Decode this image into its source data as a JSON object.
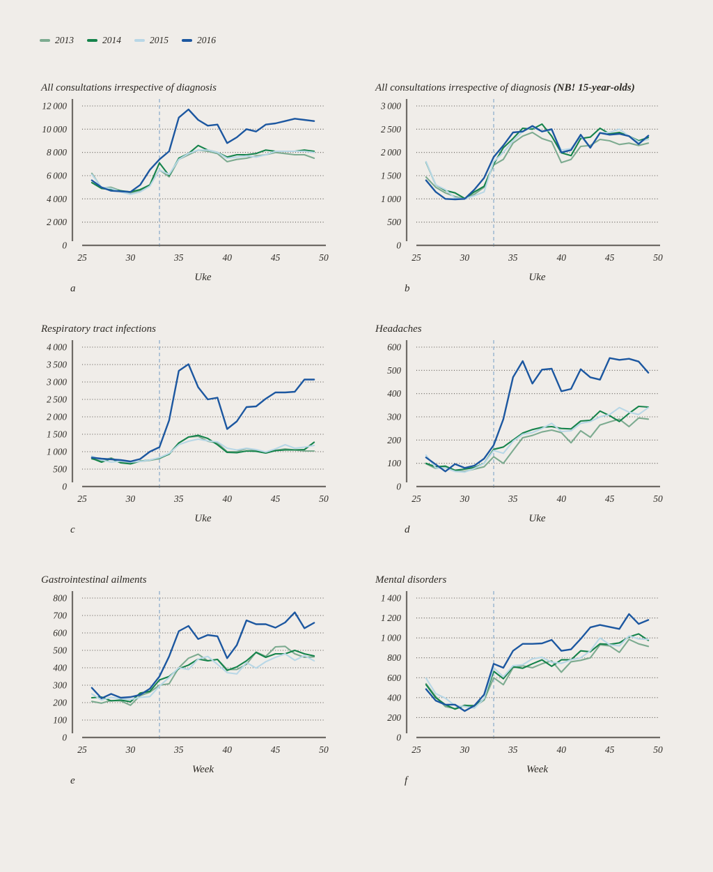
{
  "legend": {
    "items": [
      {
        "label": "2013",
        "color": "#7dab90"
      },
      {
        "label": "2014",
        "color": "#15834b"
      },
      {
        "label": "2015",
        "color": "#b8d7e6"
      },
      {
        "label": "2016",
        "color": "#1c57a0"
      }
    ]
  },
  "style_colors": {
    "background": "#f0ede9",
    "grid_dots": "#57534d",
    "axis": "#6f6b66",
    "dashed_vline": "#a9c0d4",
    "text": "#2d2a25"
  },
  "weeks": [
    26,
    27,
    28,
    29,
    30,
    31,
    32,
    33,
    34,
    35,
    36,
    37,
    38,
    39,
    40,
    41,
    42,
    43,
    44,
    45,
    46,
    47,
    48,
    49
  ],
  "chart_data": [
    {
      "type": "line",
      "title": "All consultations irrespective of diagnosis",
      "title_bold": "",
      "panel_letter": "a",
      "xlabel": "Uke",
      "xlim": [
        25,
        50
      ],
      "xticks": [
        25,
        30,
        35,
        40,
        45,
        50
      ],
      "ylim": [
        0,
        12000
      ],
      "ystep": 2000,
      "vline_week": 33,
      "grid": "dotted",
      "legend_position": "top-left-of-figure",
      "series": [
        {
          "name": "2013",
          "values": [
            6200,
            4950,
            5000,
            4700,
            4500,
            4700,
            5200,
            6500,
            5900,
            7400,
            7800,
            8200,
            8100,
            7900,
            7200,
            7400,
            7500,
            7700,
            7800,
            8000,
            7900,
            7800,
            7800,
            7500
          ]
        },
        {
          "name": "2014",
          "values": [
            5400,
            4900,
            4800,
            4700,
            4600,
            4800,
            5200,
            7100,
            6000,
            7500,
            7900,
            8600,
            8200,
            8000,
            7600,
            7800,
            7800,
            7900,
            8200,
            8100,
            8100,
            8100,
            8200,
            8100
          ]
        },
        {
          "name": "2015",
          "values": [
            6100,
            5000,
            4900,
            4600,
            4400,
            4600,
            5100,
            6500,
            6100,
            7400,
            7900,
            8200,
            8200,
            8000,
            7500,
            7600,
            7700,
            7600,
            7800,
            8100,
            8100,
            8100,
            8100,
            8000
          ]
        },
        {
          "name": "2016",
          "values": [
            5600,
            5000,
            4700,
            4650,
            4600,
            5200,
            6500,
            7400,
            8100,
            11000,
            11700,
            10800,
            10300,
            10400,
            8800,
            9300,
            10000,
            9800,
            10400,
            10500,
            10700,
            10900,
            10800,
            10700
          ]
        }
      ]
    },
    {
      "type": "line",
      "title": "All consultations irrespective of diagnosis ",
      "title_bold": "(NB! 15-year-olds)",
      "panel_letter": "b",
      "xlabel": "Uke",
      "xlim": [
        25,
        50
      ],
      "xticks": [
        25,
        30,
        35,
        40,
        45,
        50
      ],
      "ylim": [
        0,
        3000
      ],
      "ystep": 500,
      "vline_week": 33,
      "grid": "dotted",
      "series": [
        {
          "name": "2013",
          "values": [
            1470,
            1250,
            1130,
            1050,
            1000,
            1100,
            1250,
            1730,
            1850,
            2200,
            2350,
            2430,
            2300,
            2230,
            1780,
            1850,
            2130,
            2150,
            2280,
            2250,
            2170,
            2200,
            2150,
            2200
          ]
        },
        {
          "name": "2014",
          "values": [
            1790,
            1300,
            1180,
            1130,
            1010,
            1150,
            1270,
            1750,
            2100,
            2300,
            2520,
            2500,
            2610,
            2350,
            1990,
            1930,
            2300,
            2330,
            2520,
            2400,
            2430,
            2350,
            2250,
            2320
          ]
        },
        {
          "name": "2015",
          "values": [
            1800,
            1300,
            1200,
            1020,
            1000,
            1070,
            1150,
            1800,
            2000,
            2250,
            2450,
            2550,
            2450,
            2480,
            2050,
            2080,
            2350,
            2100,
            2420,
            2430,
            2500,
            2350,
            2230,
            2280
          ]
        },
        {
          "name": "2016",
          "values": [
            1400,
            1150,
            1000,
            990,
            1000,
            1200,
            1450,
            1900,
            2150,
            2430,
            2450,
            2570,
            2450,
            2500,
            2000,
            2050,
            2380,
            2100,
            2420,
            2380,
            2400,
            2350,
            2180,
            2360
          ]
        }
      ]
    },
    {
      "type": "line",
      "title": "Respiratory tract infections",
      "title_bold": "",
      "panel_letter": "c",
      "xlabel": "Uke",
      "xlim": [
        25,
        50
      ],
      "xticks": [
        25,
        30,
        35,
        40,
        45,
        50
      ],
      "ylim": [
        0,
        4000
      ],
      "ystep": 500,
      "vline_week": 33,
      "grid": "dotted",
      "series": [
        {
          "name": "2013",
          "values": [
            790,
            740,
            820,
            700,
            690,
            720,
            750,
            800,
            940,
            1250,
            1420,
            1440,
            1300,
            1250,
            1000,
            1000,
            1090,
            1030,
            980,
            1040,
            1080,
            1050,
            1020,
            1020
          ]
        },
        {
          "name": "2014",
          "values": [
            810,
            700,
            800,
            680,
            650,
            730,
            760,
            820,
            930,
            1250,
            1420,
            1470,
            1380,
            1200,
            980,
            970,
            1020,
            1010,
            960,
            1030,
            1050,
            1050,
            1060,
            1270
          ]
        },
        {
          "name": "2015",
          "values": [
            870,
            760,
            700,
            730,
            700,
            720,
            760,
            830,
            950,
            1200,
            1300,
            1360,
            1310,
            1280,
            1100,
            1050,
            1100,
            1060,
            990,
            1080,
            1200,
            1100,
            1130,
            1180
          ]
        },
        {
          "name": "2016",
          "values": [
            830,
            800,
            780,
            760,
            720,
            790,
            1000,
            1130,
            1900,
            3320,
            3510,
            2850,
            2500,
            2550,
            1650,
            1870,
            2280,
            2300,
            2520,
            2700,
            2700,
            2720,
            3070,
            3070
          ]
        }
      ]
    },
    {
      "type": "line",
      "title": "Headaches",
      "title_bold": "",
      "panel_letter": "d",
      "xlabel": "Uke",
      "xlim": [
        25,
        50
      ],
      "xticks": [
        25,
        30,
        35,
        40,
        45,
        50
      ],
      "ylim": [
        0,
        600
      ],
      "ystep": 100,
      "vline_week": 33,
      "grid": "dotted",
      "series": [
        {
          "name": "2013",
          "values": [
            98,
            78,
            85,
            68,
            65,
            75,
            85,
            128,
            100,
            155,
            210,
            220,
            235,
            243,
            232,
            188,
            240,
            212,
            265,
            278,
            290,
            258,
            295,
            290
          ]
        },
        {
          "name": "2014",
          "values": [
            100,
            85,
            88,
            70,
            75,
            82,
            100,
            160,
            170,
            200,
            230,
            245,
            255,
            258,
            250,
            248,
            282,
            285,
            325,
            305,
            280,
            315,
            345,
            342
          ]
        },
        {
          "name": "2015",
          "values": [
            135,
            80,
            80,
            65,
            62,
            78,
            100,
            155,
            143,
            195,
            225,
            232,
            250,
            272,
            237,
            240,
            272,
            280,
            300,
            310,
            340,
            320,
            310,
            340
          ]
        },
        {
          "name": "2016",
          "values": [
            125,
            95,
            65,
            97,
            80,
            90,
            120,
            178,
            290,
            470,
            540,
            443,
            503,
            507,
            410,
            420,
            505,
            470,
            460,
            553,
            545,
            550,
            538,
            490
          ]
        }
      ]
    },
    {
      "type": "line",
      "title": "Gastrointestinal ailments",
      "title_bold": "",
      "panel_letter": "e",
      "xlabel": "Week",
      "xlim": [
        25,
        50
      ],
      "xticks": [
        25,
        30,
        35,
        40,
        45,
        50
      ],
      "ylim": [
        0,
        800
      ],
      "ystep": 100,
      "vline_week": 33,
      "grid": "dotted",
      "series": [
        {
          "name": "2013",
          "values": [
            207,
            197,
            212,
            210,
            185,
            240,
            260,
            300,
            308,
            400,
            455,
            478,
            440,
            448,
            390,
            390,
            420,
            490,
            465,
            520,
            523,
            480,
            460,
            463
          ]
        },
        {
          "name": "2014",
          "values": [
            228,
            232,
            210,
            215,
            205,
            255,
            265,
            330,
            350,
            395,
            415,
            450,
            440,
            448,
            385,
            405,
            440,
            488,
            460,
            480,
            480,
            500,
            480,
            468
          ]
        },
        {
          "name": "2015",
          "values": [
            250,
            215,
            230,
            222,
            218,
            230,
            235,
            295,
            345,
            400,
            390,
            450,
            465,
            420,
            372,
            365,
            430,
            398,
            435,
            460,
            480,
            443,
            470,
            440
          ]
        },
        {
          "name": "2016",
          "values": [
            285,
            225,
            250,
            228,
            232,
            245,
            280,
            350,
            465,
            610,
            640,
            565,
            588,
            581,
            455,
            530,
            672,
            650,
            650,
            630,
            660,
            718,
            627,
            658
          ]
        }
      ]
    },
    {
      "type": "line",
      "title": "Mental disorders",
      "title_bold": "",
      "panel_letter": "f",
      "xlabel": "Week",
      "xlim": [
        25,
        50
      ],
      "xticks": [
        25,
        30,
        35,
        40,
        45,
        50
      ],
      "ylim": [
        0,
        1400
      ],
      "ystep": 200,
      "vline_week": 33,
      "grid": "dotted",
      "series": [
        {
          "name": "2013",
          "values": [
            540,
            410,
            310,
            290,
            325,
            310,
            375,
            600,
            530,
            700,
            720,
            700,
            740,
            770,
            655,
            760,
            775,
            800,
            930,
            920,
            855,
            985,
            940,
            915
          ]
        },
        {
          "name": "2014",
          "values": [
            530,
            400,
            330,
            285,
            320,
            320,
            385,
            665,
            590,
            710,
            695,
            740,
            780,
            715,
            780,
            780,
            870,
            860,
            940,
            935,
            950,
            1010,
            1040,
            975
          ]
        },
        {
          "name": "2015",
          "values": [
            595,
            440,
            395,
            320,
            310,
            295,
            390,
            700,
            610,
            720,
            730,
            790,
            805,
            755,
            745,
            780,
            800,
            870,
            1000,
            930,
            920,
            1020,
            990,
            985
          ]
        },
        {
          "name": "2016",
          "values": [
            485,
            370,
            330,
            330,
            265,
            320,
            430,
            740,
            700,
            870,
            940,
            940,
            945,
            980,
            870,
            885,
            990,
            1105,
            1130,
            1110,
            1090,
            1240,
            1140,
            1180
          ]
        }
      ]
    }
  ]
}
